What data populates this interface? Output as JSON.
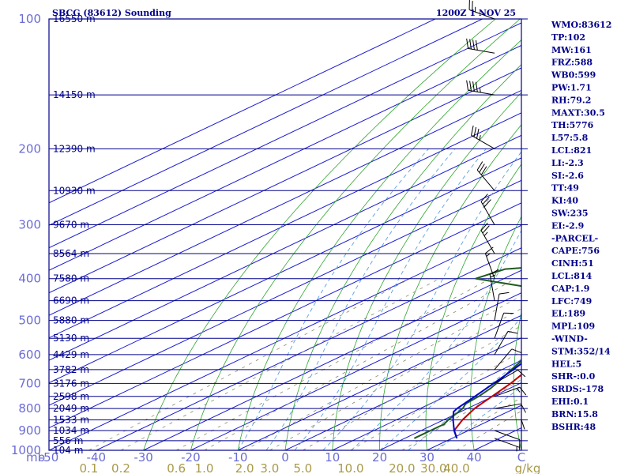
{
  "colors": {
    "frame": "#00008b",
    "isobar": "#00008b",
    "isotherm": "#1c1cd0",
    "dry_adiabat": "#2fa52f",
    "moist_adiabat": "#5aa0e0",
    "mixing_ratio": "#8a8a6a",
    "temperature": "#c00000",
    "dewpoint": "#1f5a1f",
    "parcel": "#0000cc",
    "barbs": "#000000",
    "label_blue": "#6b6bd6",
    "label_gold": "#a89a4a"
  },
  "chart_data": {
    "type": "line",
    "title": "SBCG (83612) Sounding",
    "time_label": "1200Z  1 NOV 25",
    "xlabel": "",
    "ylabel": "",
    "pressure_unit_label": "mb",
    "mixing_unit_label": "g/kg",
    "xlim": [
      -50,
      50
    ],
    "ylim": [
      1000,
      100
    ],
    "pressure_ticks": [
      100,
      200,
      300,
      400,
      500,
      600,
      700,
      800,
      900,
      1000
    ],
    "temperature_ticks": [
      "-50",
      "-40",
      "-30",
      "-20",
      "-10",
      "0",
      "10",
      "20",
      "30",
      "40",
      "C"
    ],
    "mixing_ratio_ticks": [
      "0.1",
      "0.2",
      "0.6",
      "1.0",
      "2.0",
      "3.0",
      "5.0",
      "10.0",
      "20.0",
      "30.0",
      "40.0"
    ],
    "mixing_ratio_values": [
      0.1,
      0.2,
      0.6,
      1.0,
      2.0,
      3.0,
      5.0,
      10.0,
      20.0,
      30.0,
      40.0
    ],
    "height_levels": [
      {
        "label": "16550 m",
        "p": 100
      },
      {
        "label": "14150 m",
        "p": 150
      },
      {
        "label": "12390 m",
        "p": 200
      },
      {
        "label": "10930 m",
        "p": 250
      },
      {
        "label": "9670 m",
        "p": 300
      },
      {
        "label": "8564 m",
        "p": 350
      },
      {
        "label": "7580 m",
        "p": 400
      },
      {
        "label": "6690 m",
        "p": 450
      },
      {
        "label": "5880 m",
        "p": 500
      },
      {
        "label": "5130 m",
        "p": 550
      },
      {
        "label": "4429 m",
        "p": 600
      },
      {
        "label": "3782 m",
        "p": 650
      },
      {
        "label": "3176 m",
        "p": 700
      },
      {
        "label": "2598 m",
        "p": 750
      },
      {
        "label": "2049 m",
        "p": 800
      },
      {
        "label": "1533 m",
        "p": 850
      },
      {
        "label": "1034 m",
        "p": 900
      },
      {
        "label": "556 m",
        "p": 950
      },
      {
        "label": "104 m",
        "p": 1000
      }
    ],
    "series": [
      {
        "name": "Temperature",
        "points": [
          [
            938,
            31.0
          ],
          [
            900,
            27.0
          ],
          [
            850,
            24.0
          ],
          [
            800,
            21.5
          ],
          [
            750,
            19.8
          ],
          [
            700,
            18.0
          ],
          [
            650,
            15.5
          ],
          [
            600,
            13.0
          ],
          [
            550,
            10.5
          ],
          [
            520,
            8.5
          ],
          [
            500,
            6.0
          ],
          [
            470,
            2.0
          ],
          [
            450,
            -1.0
          ],
          [
            430,
            -4.5
          ],
          [
            410,
            -6.0
          ],
          [
            400,
            -5.0
          ],
          [
            370,
            -6.5
          ],
          [
            350,
            -7.0
          ],
          [
            330,
            -8.5
          ],
          [
            310,
            -11.0
          ],
          [
            290,
            -15.0
          ],
          [
            270,
            -19.0
          ],
          [
            250,
            -24.0
          ],
          [
            230,
            -28.0
          ],
          [
            210,
            -33.0
          ],
          [
            190,
            -38.0
          ],
          [
            170,
            -45.0
          ],
          [
            155,
            -51.0
          ],
          [
            150,
            -55.0
          ],
          [
            140,
            -58.0
          ],
          [
            130,
            -60.0
          ],
          [
            115,
            -61.0
          ],
          [
            108,
            -62.0
          ],
          [
            100,
            -64.0
          ]
        ]
      },
      {
        "name": "Dewpoint",
        "points": [
          [
            938,
            22.0
          ],
          [
            920,
            22.0
          ],
          [
            900,
            22.0
          ],
          [
            870,
            22.0
          ],
          [
            850,
            21.0
          ],
          [
            800,
            19.0
          ],
          [
            780,
            17.5
          ],
          [
            750,
            17.0
          ],
          [
            720,
            16.0
          ],
          [
            700,
            15.0
          ],
          [
            650,
            12.0
          ],
          [
            600,
            9.0
          ],
          [
            560,
            6.0
          ],
          [
            550,
            2.0
          ],
          [
            520,
            0.0
          ],
          [
            500,
            -4.0
          ],
          [
            480,
            -8.0
          ],
          [
            460,
            -11.0
          ],
          [
            440,
            -5.0
          ],
          [
            420,
            -20.0
          ],
          [
            400,
            -36.0
          ],
          [
            380,
            -34.0
          ],
          [
            360,
            -8.0
          ],
          [
            350,
            -30.0
          ],
          [
            340,
            -33.0
          ],
          [
            320,
            -10.0
          ],
          [
            300,
            -17.0
          ],
          [
            280,
            -17.0
          ],
          [
            260,
            -14.0
          ],
          [
            250,
            -16.0
          ],
          [
            230,
            -26.0
          ],
          [
            220,
            -32.0
          ],
          [
            200,
            -42.0
          ],
          [
            180,
            -48.0
          ],
          [
            160,
            -56.0
          ],
          [
            150,
            -63.0
          ],
          [
            140,
            -70.0
          ],
          [
            120,
            -80.0
          ],
          [
            110,
            -83.0
          ],
          [
            100,
            -85.0
          ]
        ]
      },
      {
        "name": "Parcel",
        "points": [
          [
            938,
            31.0
          ],
          [
            900,
            27.0
          ],
          [
            850,
            22.0
          ],
          [
            814,
            18.5
          ],
          [
            800,
            17.8
          ],
          [
            750,
            16.2
          ],
          [
            700,
            14.4
          ],
          [
            650,
            12.4
          ],
          [
            600,
            10.0
          ],
          [
            550,
            7.3
          ],
          [
            500,
            4.2
          ],
          [
            450,
            0.5
          ],
          [
            400,
            -4.0
          ],
          [
            350,
            -9.5
          ],
          [
            300,
            -16.5
          ],
          [
            250,
            -25.5
          ],
          [
            200,
            -37.5
          ],
          [
            170,
            -46.0
          ],
          [
            150,
            -53.5
          ],
          [
            130,
            -62.0
          ],
          [
            115,
            -68.0
          ],
          [
            109,
            -70.5
          ]
        ]
      }
    ],
    "wind_barbs": [
      {
        "p": 938,
        "dir": 110,
        "spd": 5
      },
      {
        "p": 900,
        "dir": 110,
        "spd": 10
      },
      {
        "p": 850,
        "dir": 90,
        "spd": 10
      },
      {
        "p": 800,
        "dir": 80,
        "spd": 10
      },
      {
        "p": 750,
        "dir": 70,
        "spd": 15
      },
      {
        "p": 700,
        "dir": 60,
        "spd": 10
      },
      {
        "p": 650,
        "dir": 40,
        "spd": 10
      },
      {
        "p": 600,
        "dir": 30,
        "spd": 10
      },
      {
        "p": 550,
        "dir": 20,
        "spd": 10
      },
      {
        "p": 500,
        "dir": 10,
        "spd": 10
      },
      {
        "p": 450,
        "dir": 350,
        "spd": 15
      },
      {
        "p": 400,
        "dir": 340,
        "spd": 15
      },
      {
        "p": 350,
        "dir": 330,
        "spd": 25
      },
      {
        "p": 300,
        "dir": 330,
        "spd": 30
      },
      {
        "p": 250,
        "dir": 320,
        "spd": 30
      },
      {
        "p": 200,
        "dir": 300,
        "spd": 35
      },
      {
        "p": 150,
        "dir": 280,
        "spd": 45
      },
      {
        "p": 120,
        "dir": 280,
        "spd": 40
      },
      {
        "p": 100,
        "dir": 290,
        "spd": 25
      }
    ]
  },
  "indices": [
    "WMO:83612",
    "TP:102",
    "MW:161",
    "FRZ:588",
    "WB0:599",
    "PW:1.71",
    "RH:79.2",
    "MAXT:30.5",
    "TH:5776",
    "L57:5.8",
    "LCL:821",
    "LI:-2.3",
    "SI:-2.6",
    "TT:49",
    "KI:40",
    "SW:235",
    "EI:-2.9",
    "-PARCEL-",
    "CAPE:756",
    "CINH:51",
    "LCL:814",
    "CAP:1.9",
    "LFC:749",
    "EL:189",
    "MPL:109",
    "-WIND-",
    "STM:352/14",
    "HEL:5",
    "SHR-:0.0",
    "SRDS:-178",
    "EHI:0.1",
    "BRN:15.8",
    "BSHR:48"
  ]
}
